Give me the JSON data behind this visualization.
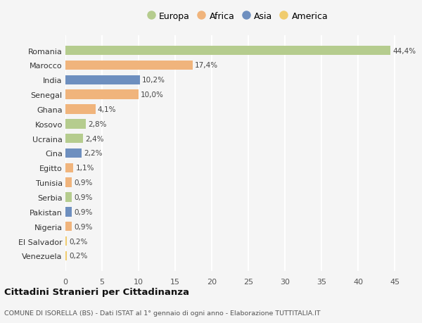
{
  "countries": [
    "Romania",
    "Marocco",
    "India",
    "Senegal",
    "Ghana",
    "Kosovo",
    "Ucraina",
    "Cina",
    "Egitto",
    "Tunisia",
    "Serbia",
    "Pakistan",
    "Nigeria",
    "El Salvador",
    "Venezuela"
  ],
  "values": [
    44.4,
    17.4,
    10.2,
    10.0,
    4.1,
    2.8,
    2.4,
    2.2,
    1.1,
    0.9,
    0.9,
    0.9,
    0.9,
    0.2,
    0.2
  ],
  "labels": [
    "44,4%",
    "17,4%",
    "10,2%",
    "10,0%",
    "4,1%",
    "2,8%",
    "2,4%",
    "2,2%",
    "1,1%",
    "0,9%",
    "0,9%",
    "0,9%",
    "0,9%",
    "0,2%",
    "0,2%"
  ],
  "continents": [
    "Europa",
    "Africa",
    "Asia",
    "Africa",
    "Africa",
    "Europa",
    "Europa",
    "Asia",
    "Africa",
    "Africa",
    "Europa",
    "Asia",
    "Africa",
    "America",
    "America"
  ],
  "colors": {
    "Europa": "#b5cc8e",
    "Africa": "#f0b47c",
    "Asia": "#6e8fbf",
    "America": "#f0cc6e"
  },
  "background_color": "#f5f5f5",
  "plot_area_color": "#f5f5f5",
  "grid_color": "#ffffff",
  "title": "Cittadini Stranieri per Cittadinanza",
  "subtitle": "COMUNE DI ISORELLA (BS) - Dati ISTAT al 1° gennaio di ogni anno - Elaborazione TUTTITALIA.IT",
  "xlim": [
    0,
    47
  ],
  "xticks": [
    0,
    5,
    10,
    15,
    20,
    25,
    30,
    35,
    40,
    45
  ],
  "legend_order": [
    "Europa",
    "Africa",
    "Asia",
    "America"
  ],
  "bar_height": 0.65
}
